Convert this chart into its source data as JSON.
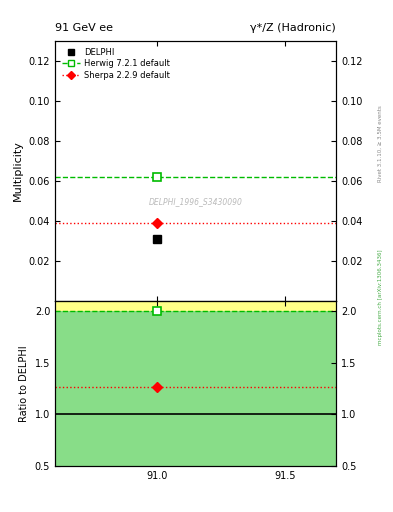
{
  "title_left": "91 GeV ee",
  "title_right": "γ*/Z (Hadronic)",
  "ylabel_main": "Multiplicity",
  "ylabel_ratio": "Ratio to DELPHI",
  "right_label_top": "Rivet 3.1.10, ≥ 3.5M events",
  "right_label_bot": "mcplots.cern.ch [arXiv:1306.3436]",
  "watermark": "DELPHI_1996_S3430090",
  "xlim": [
    90.6,
    91.7
  ],
  "xticks": [
    91.0,
    91.5
  ],
  "ylim_main": [
    0.0,
    0.13
  ],
  "yticks_main": [
    0.02,
    0.04,
    0.06,
    0.08,
    0.1,
    0.12
  ],
  "ylim_ratio": [
    0.5,
    2.1
  ],
  "yticks_ratio": [
    0.5,
    1.0,
    1.5,
    2.0
  ],
  "data_x": 91.0,
  "data_y": 0.031,
  "herwig_y": 0.062,
  "sherpa_y": 0.039,
  "herwig_color": "#00bb00",
  "sherpa_color": "#ff0000",
  "data_color": "#000000",
  "ratio_herwig": 2.0,
  "ratio_sherpa": 1.26,
  "green_band_lo": 0.5,
  "green_band_hi": 2.0,
  "yellow_band_lo": 0.5,
  "yellow_band_hi": 2.1,
  "yellow_color": "#ffff88",
  "green_color": "#88dd88"
}
